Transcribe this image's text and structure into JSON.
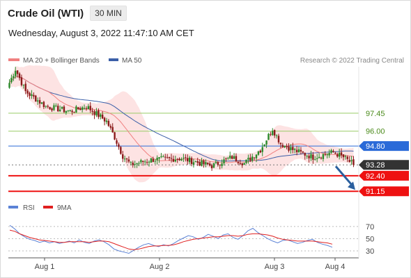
{
  "header": {
    "instrument": "Crude Oil (WTI)",
    "interval": "30 MIN",
    "datetime": "Wednesday, August 3, 2022 11:47:10 AM CET"
  },
  "legend": {
    "ma20": "MA 20 + Bollinger Bands",
    "ma50": "MA 50",
    "credit": "Research © 2022 Trading Central",
    "rsi": "RSI",
    "rsi_ma": "9MA"
  },
  "colors": {
    "up": "#2a8a2a",
    "down": "#8b1a1a",
    "ma20": "#f08080",
    "ma50": "#3b5fa8",
    "bollinger_fill": "#fde3e3",
    "support": "#ee1111",
    "resistance_minor": "#99cc66",
    "pivot": "#2a6ad8",
    "current": "#333333",
    "arrow": "#2a5f9e",
    "rsi": "#5b82d6",
    "rsi_ma": "#e02020"
  },
  "chart_data": [
    {
      "type": "candlestick",
      "title": "Crude Oil (WTI)",
      "interval": "30 MIN",
      "x_ticks": [
        "Aug 1",
        "Aug 2",
        "Aug 3",
        "Aug 4"
      ],
      "ylim": [
        90.6,
        101.2
      ],
      "grid": false,
      "legend_position": "top-left",
      "levels": [
        {
          "label": "97.45",
          "value": 97.45,
          "kind": "resistance_minor"
        },
        {
          "label": "96.00",
          "value": 96.0,
          "kind": "resistance_minor"
        },
        {
          "label": "94.80",
          "value": 94.8,
          "kind": "pivot"
        },
        {
          "label": "93.28",
          "value": 93.28,
          "kind": "current"
        },
        {
          "label": "92.40",
          "value": 92.4,
          "kind": "support"
        },
        {
          "label": "91.15",
          "value": 91.15,
          "kind": "support"
        }
      ],
      "forecast_arrow": {
        "from": 93.28,
        "to": 91.15
      },
      "key_points": [
        {
          "time_index": 0,
          "price": 99.9
        },
        {
          "time_index": 3,
          "price": 101.0
        },
        {
          "time_index": 8,
          "price": 99.2
        },
        {
          "time_index": 18,
          "price": 98.0
        },
        {
          "time_index": 30,
          "price": 97.6
        },
        {
          "time_index": 38,
          "price": 98.0
        },
        {
          "time_index": 48,
          "price": 96.8
        },
        {
          "time_index": 52,
          "price": 95.5
        },
        {
          "time_index": 56,
          "price": 94.0
        },
        {
          "time_index": 60,
          "price": 93.3
        },
        {
          "time_index": 70,
          "price": 93.7
        },
        {
          "time_index": 85,
          "price": 93.8
        },
        {
          "time_index": 100,
          "price": 93.2
        },
        {
          "time_index": 110,
          "price": 93.9
        },
        {
          "time_index": 116,
          "price": 93.4
        },
        {
          "time_index": 124,
          "price": 94.5
        },
        {
          "time_index": 130,
          "price": 96.2
        },
        {
          "time_index": 134,
          "price": 95.0
        },
        {
          "time_index": 140,
          "price": 94.5
        },
        {
          "time_index": 150,
          "price": 93.9
        },
        {
          "time_index": 160,
          "price": 94.3
        },
        {
          "time_index": 165,
          "price": 93.9
        },
        {
          "time_index": 170,
          "price": 93.3
        }
      ],
      "series": [
        {
          "name": "MA 20 + Bollinger Bands"
        },
        {
          "name": "MA 50"
        }
      ]
    },
    {
      "type": "line",
      "title": "RSI",
      "ylim": [
        22,
        88
      ],
      "y_ticks": [
        70,
        50,
        30
      ],
      "series": [
        {
          "name": "RSI",
          "values": [
            72,
            66,
            58,
            53,
            49,
            47,
            44,
            46,
            43,
            45,
            42,
            44,
            46,
            43,
            48,
            44,
            42,
            46,
            48,
            45,
            40,
            33,
            30,
            28,
            26,
            31,
            36,
            40,
            42,
            39,
            37,
            40,
            38,
            42,
            47,
            51,
            55,
            53,
            49,
            52,
            57,
            54,
            50,
            56,
            58,
            52,
            49,
            55,
            63,
            67,
            60,
            55,
            50,
            46,
            43,
            47,
            48,
            45,
            42,
            44,
            47,
            49,
            44,
            41,
            39,
            36
          ]
        },
        {
          "name": "9MA",
          "values": [
            64,
            62,
            58,
            55,
            52,
            50,
            48,
            47,
            46,
            45,
            44,
            44,
            45,
            45,
            45,
            45,
            44,
            45,
            46,
            46,
            45,
            42,
            39,
            36,
            33,
            32,
            33,
            35,
            37,
            38,
            38,
            39,
            39,
            40,
            42,
            45,
            47,
            49,
            50,
            51,
            52,
            53,
            53,
            54,
            55,
            55,
            54,
            55,
            57,
            58,
            58,
            57,
            56,
            54,
            51,
            49,
            48,
            47,
            46,
            46,
            46,
            46,
            45,
            44,
            43,
            41
          ]
        }
      ]
    }
  ]
}
